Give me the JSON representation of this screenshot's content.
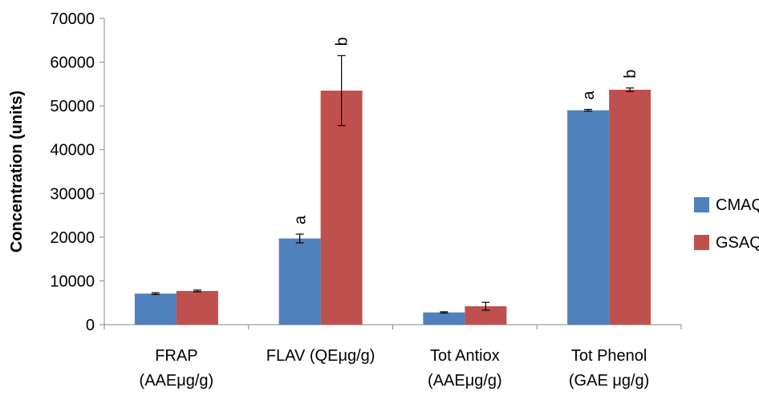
{
  "chart_data": {
    "type": "bar",
    "title": "",
    "xlabel": "",
    "ylabel": "Concentration (units)",
    "ylim": [
      0,
      70000
    ],
    "yticks": [
      0,
      10000,
      20000,
      30000,
      40000,
      50000,
      60000,
      70000
    ],
    "grid": false,
    "legend_position": "right",
    "categories": [
      [
        "FRAP",
        "(AAEμg/g)"
      ],
      [
        "FLAV (QEμg/g)"
      ],
      [
        "Tot Antiox",
        "(AAEμg/g)"
      ],
      [
        "Tot Phenol",
        "(GAE μg/g)"
      ]
    ],
    "series": [
      {
        "name": "CMAQ",
        "color": "#4F81BD",
        "values": [
          7100,
          19700,
          2800,
          49000
        ],
        "errors": [
          200,
          1000,
          150,
          200
        ],
        "labels": [
          "",
          "a",
          "",
          "a"
        ]
      },
      {
        "name": "GSAQ",
        "color": "#C0504D",
        "values": [
          7700,
          53500,
          4200,
          53700
        ],
        "errors": [
          200,
          8000,
          900,
          400
        ],
        "labels": [
          "",
          "b",
          "",
          "b"
        ]
      }
    ]
  }
}
